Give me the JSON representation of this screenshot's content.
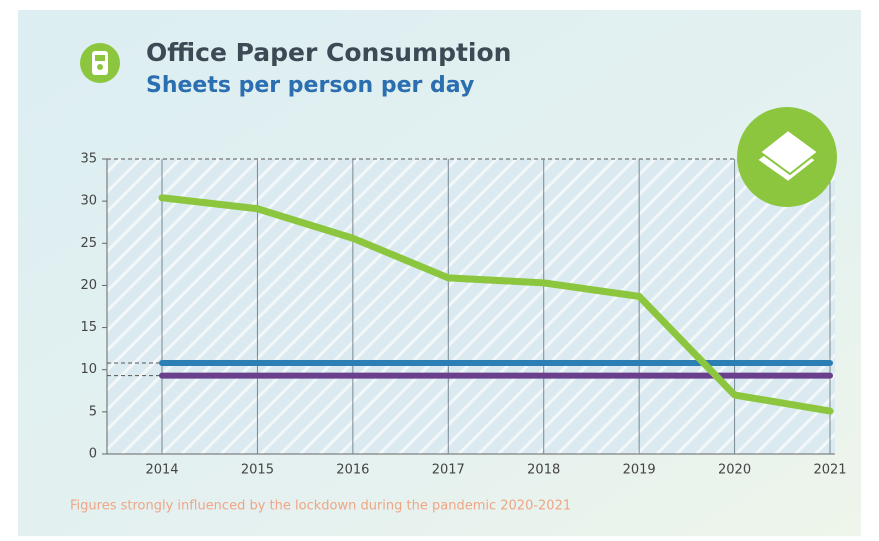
{
  "chart_data": {
    "type": "line",
    "title": "Office Paper Consumption",
    "subtitle": "Sheets per person per day",
    "note": "Figures strongly influenced by the lockdown during the pandemic 2020-2021",
    "categories": [
      "2014",
      "2015",
      "2016",
      "2017",
      "2018",
      "2019",
      "2020",
      "2021"
    ],
    "series": [
      {
        "color": "#8cc63f",
        "values": [
          30.4,
          29.1,
          25.6,
          20.9,
          20.3,
          18.7,
          7.0,
          5.1
        ]
      },
      {
        "color": "#2b7fb4",
        "values": [
          10.8,
          10.8,
          10.8,
          10.8,
          10.8,
          10.8,
          10.8,
          10.8
        ]
      },
      {
        "color": "#6a3f8c",
        "values": [
          9.3,
          9.3,
          9.3,
          9.3,
          9.3,
          9.3,
          9.3,
          9.3
        ]
      }
    ],
    "ylim": [
      0,
      35
    ],
    "yticks": [
      0,
      5,
      10,
      15,
      20,
      25,
      30,
      35
    ],
    "grid": true
  }
}
